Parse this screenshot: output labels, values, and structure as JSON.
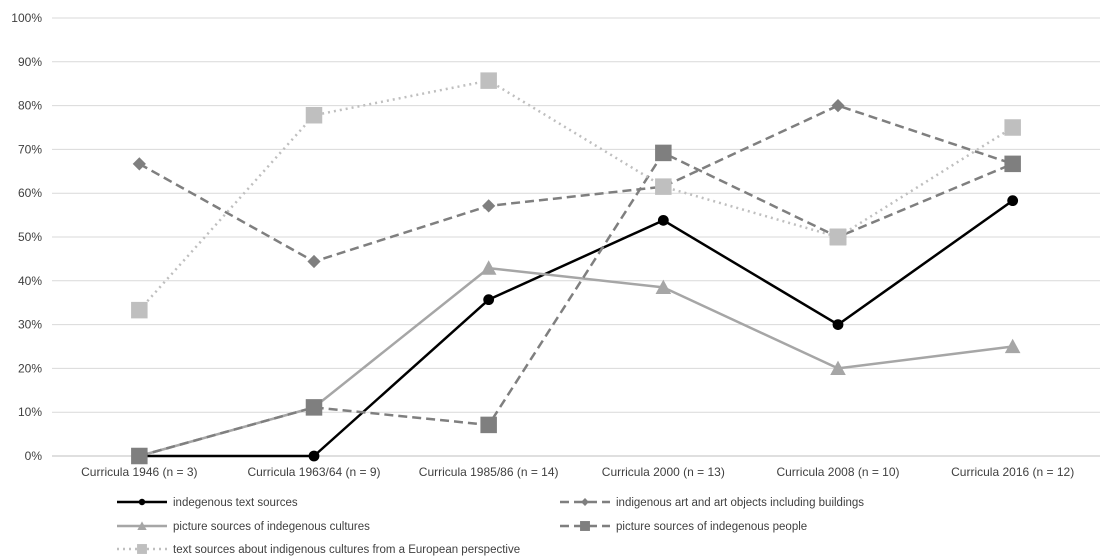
{
  "chart_data": {
    "type": "line",
    "title": "",
    "xlabel": "",
    "ylabel": "",
    "ylim": [
      0,
      100
    ],
    "y_ticks": [
      "0%",
      "10%",
      "20%",
      "30%",
      "40%",
      "50%",
      "60%",
      "70%",
      "80%",
      "90%",
      "100%"
    ],
    "grid": true,
    "legend_position": "bottom",
    "categories": [
      "Curricula 1946 (n = 3)",
      "Curricula 1963/64 (n = 9)",
      "Curricula 1985/86 (n = 14)",
      "Curricula 2000 (n = 13)",
      "Curricula 2008 (n = 10)",
      "Curricula 2016 (n = 12)"
    ],
    "series": [
      {
        "name": "indegenous text sources",
        "values": [
          0,
          0,
          35.7,
          53.8,
          30,
          58.3
        ],
        "color": "#000000",
        "dash": "solid",
        "marker": "circle"
      },
      {
        "name": "indigenous art and art objects including buildings",
        "values": [
          66.7,
          44.4,
          57.1,
          61.5,
          80,
          66.7
        ],
        "color": "#7f7f7f",
        "dash": "dash",
        "marker": "diamond"
      },
      {
        "name": "picture sources of indegenous cultures",
        "values": [
          0,
          11.1,
          42.9,
          38.5,
          20,
          25
        ],
        "color": "#a6a6a6",
        "dash": "solid",
        "marker": "triangle"
      },
      {
        "name": "picture sources of indegenous people",
        "values": [
          0,
          11.1,
          7.1,
          69.2,
          50,
          66.7
        ],
        "color": "#7f7f7f",
        "dash": "dash",
        "marker": "square"
      },
      {
        "name": "text sources about indigenous cultures from a European perspective",
        "values": [
          33.3,
          77.8,
          85.7,
          61.5,
          50,
          75
        ],
        "color": "#bfbfbf",
        "dash": "dot",
        "marker": "square"
      }
    ]
  }
}
